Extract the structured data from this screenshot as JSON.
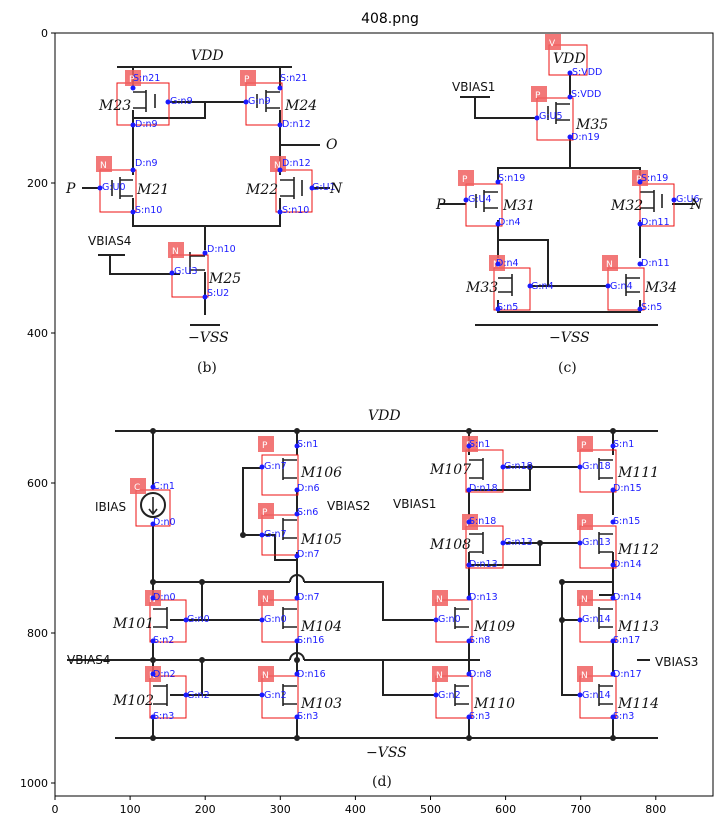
{
  "title": "408.png",
  "xticks": [
    "0",
    "100",
    "200",
    "300",
    "400",
    "500",
    "600",
    "700",
    "800"
  ],
  "yticks": [
    "0",
    "200",
    "400",
    "600",
    "800",
    "1000"
  ],
  "subfig_labels": {
    "b": "(b)",
    "c": "(c)",
    "d": "(d)"
  },
  "circuit_b": {
    "vdd": "VDD",
    "vss": "−VSS",
    "vbias": "VBIAS4",
    "out": "O",
    "in_p": "P",
    "in_n": "N",
    "m23": "M23",
    "m24": "M24",
    "m21": "M21",
    "m22": "M22",
    "m25": "M25",
    "pins": {
      "m23_s": "S:n21",
      "m23_g": "G:n9",
      "m23_d": "D:n9",
      "m24_s": "S:n21",
      "m24_g": "G:n9",
      "m24_d": "D:n12",
      "m21_d": "D:n9",
      "m21_g": "G:U0",
      "m21_s": "S:n10",
      "m22_d": "D:n12",
      "m22_g": "G:U1",
      "m22_s": "S:n10",
      "m25_d": "D:n10",
      "m25_g": "G:U3",
      "m25_s": "S:U2"
    },
    "tags": {
      "m23": "P",
      "m24": "P",
      "m21": "N",
      "m22": "N",
      "m25": "N"
    }
  },
  "circuit_c": {
    "vdd": "VDD",
    "vss": "−VSS",
    "vbias": "VBIAS1",
    "in_p": "P",
    "in_n": "N",
    "m35": "M35",
    "m31": "M31",
    "m32": "M32",
    "m33": "M33",
    "m34": "M34",
    "pins": {
      "v_s": "S:VDD",
      "m35_s": "S:VDD",
      "m35_g": "G:U5",
      "m35_d": "D:n19",
      "m31_s": "S:n19",
      "m31_g": "G:U4",
      "m31_d": "D:n4",
      "m32_s": "S:n19",
      "m32_g": "G:U6",
      "m32_d": "D:n11",
      "m33_d": "D:n4",
      "m33_g": "G:n4",
      "m33_s": "S:n5",
      "m34_d": "D:n11",
      "m34_g": "G:n4",
      "m34_s": "S:n5"
    },
    "tags": {
      "v": "V",
      "m35": "P",
      "m31": "P",
      "m32": "P",
      "m33": "N",
      "m34": "N"
    }
  },
  "circuit_d": {
    "vdd": "VDD",
    "vss": "−VSS",
    "ibias": "IBIAS",
    "vbias1": "VBIAS1",
    "vbias2": "VBIAS2",
    "vbias3": "VBIAS3",
    "vbias4": "VBIAS4",
    "m106": "M106",
    "m105": "M105",
    "m107": "M107",
    "m108": "M108",
    "m111": "M111",
    "m112": "M112",
    "m101": "M101",
    "m104": "M104",
    "m109": "M109",
    "m113": "M113",
    "m102": "M102",
    "m103": "M103",
    "m110": "M110",
    "m114": "M114",
    "pins": {
      "c_n": "C:n1",
      "c_d": "D:n0",
      "m106_s": "S:n1",
      "m106_g": "G:n7",
      "m106_d": "D:n6",
      "m105_s": "S:n6",
      "m105_g": "G:n7",
      "m105_d": "D:n7",
      "m107_s": "S:n1",
      "m107_g": "G:n18",
      "m107_d": "D:n18",
      "m108_s": "S:n18",
      "m108_g": "G:n13",
      "m108_d": "D:n13",
      "m111_s": "S:n1",
      "m111_g": "G:n18",
      "m111_d": "D:n15",
      "m112_s": "S:n15",
      "m112_g": "G:n13",
      "m112_d": "D:n14",
      "m101_d": "D:n0",
      "m101_g": "G:n0",
      "m101_s": "S:n2",
      "m104_d": "D:n7",
      "m104_g": "G:n0",
      "m104_s": "S:n16",
      "m109_d": "D:n13",
      "m109_g": "G:n0",
      "m109_s": "S:n8",
      "m113_d": "D:n14",
      "m113_g": "G:n14",
      "m113_s": "S:n17",
      "m102_d": "D:n2",
      "m102_g": "G:n2",
      "m102_s": "S:n3",
      "m103_d": "D:n16",
      "m103_g": "G:n2",
      "m103_s": "S:n3",
      "m110_d": "D:n8",
      "m110_g": "G:n2",
      "m110_s": "S:n3",
      "m114_d": "D:n17",
      "m114_g": "G:n14",
      "m114_s": "S:n3"
    },
    "tags": {
      "c": "C",
      "m106": "P",
      "m105": "P",
      "m107": "P",
      "m108": "P",
      "m111": "P",
      "m112": "P",
      "m101": "N",
      "m104": "N",
      "m109": "N",
      "m113": "N",
      "m102": "N",
      "m103": "N",
      "m110": "N",
      "m114": "N"
    }
  }
}
